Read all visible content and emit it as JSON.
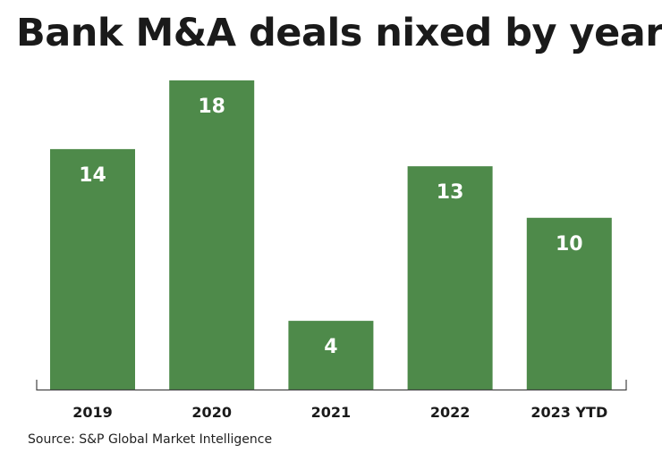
{
  "chart_data": {
    "type": "bar",
    "title": "Bank M&A deals nixed by year",
    "categories": [
      "2019",
      "2020",
      "2021",
      "2022",
      "2023 YTD"
    ],
    "values": [
      14,
      18,
      4,
      13,
      10
    ],
    "data_labels": [
      "14",
      "18",
      "4",
      "13",
      "10"
    ],
    "xlabel": "",
    "ylabel": "",
    "ylim": [
      0,
      18
    ],
    "grid": false,
    "bar_color": "#4e8a4a",
    "source": "Source: S&P Global Market Intelligence"
  }
}
